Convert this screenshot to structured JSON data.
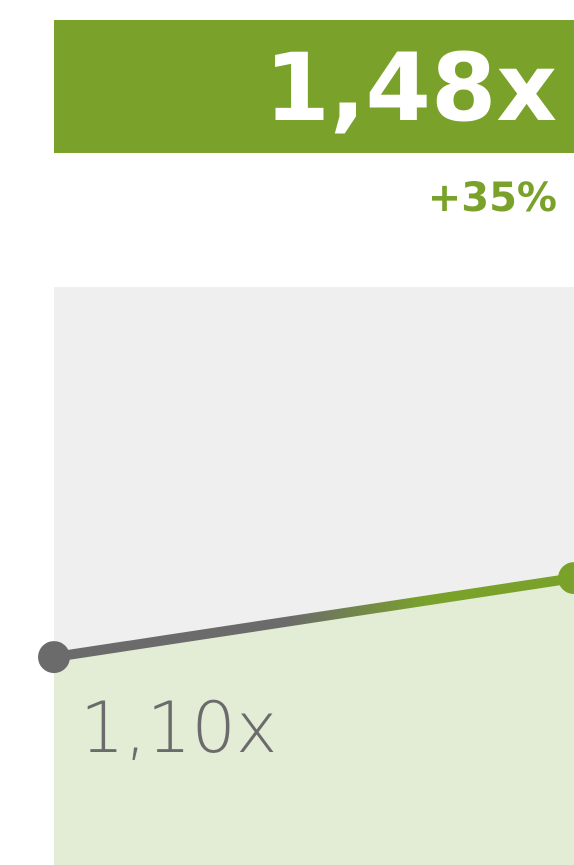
{
  "chart_data": {
    "type": "line",
    "categories": [
      null,
      null
    ],
    "values": [
      1.1,
      1.48
    ],
    "value_labels": [
      "1,10x",
      "1,48x"
    ],
    "annotation": "+35%",
    "ylim": [
      0.1,
      2.88
    ],
    "colors": [
      "#6b6b6b",
      "#7aa22a"
    ],
    "area_color": "#e3ecd5",
    "background": "#efefef"
  }
}
